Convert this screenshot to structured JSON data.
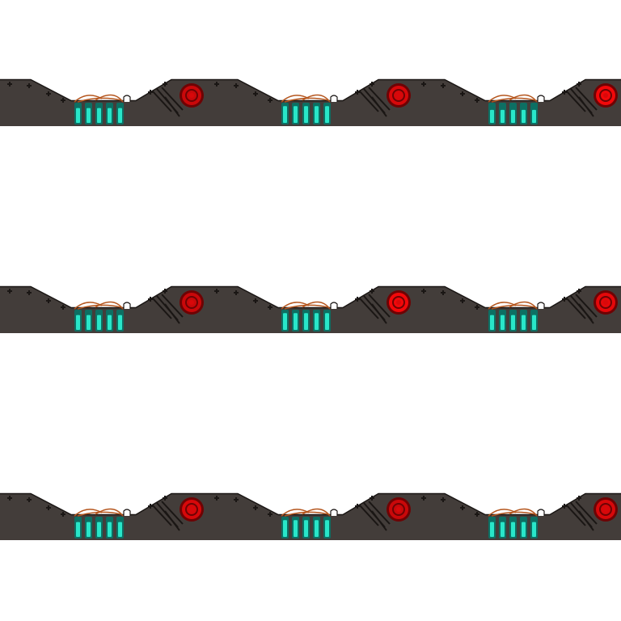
{
  "sheet": {
    "kind": "pixel-art tile sprite sheet",
    "rows": 3,
    "columns": 3,
    "tile": "machinery-ground-segment",
    "colors": {
      "background": "#ffffff",
      "ground": "#433d3a",
      "ground_edge": "#1b1715",
      "vent_glow": "#29e6c9",
      "vent_dark": "#0d6f63",
      "lamp_red": "#d9080a",
      "lamp_dark": "#6e0304",
      "wire": "#b5561e",
      "rivet": "#1a1614"
    },
    "frames": [
      {
        "lamp_level": 0.6,
        "vent_level": 0.8
      },
      {
        "lamp_level": 0.7,
        "vent_level": 0.9
      },
      {
        "lamp_level": 0.9,
        "vent_level": 0.7
      },
      {
        "lamp_level": 0.6,
        "vent_level": 0.8
      },
      {
        "lamp_level": 0.9,
        "vent_level": 0.9
      },
      {
        "lamp_level": 0.8,
        "vent_level": 0.8
      },
      {
        "lamp_level": 0.7,
        "vent_level": 0.8
      },
      {
        "lamp_level": 0.6,
        "vent_level": 0.9
      },
      {
        "lamp_level": 0.7,
        "vent_level": 0.8
      }
    ]
  }
}
